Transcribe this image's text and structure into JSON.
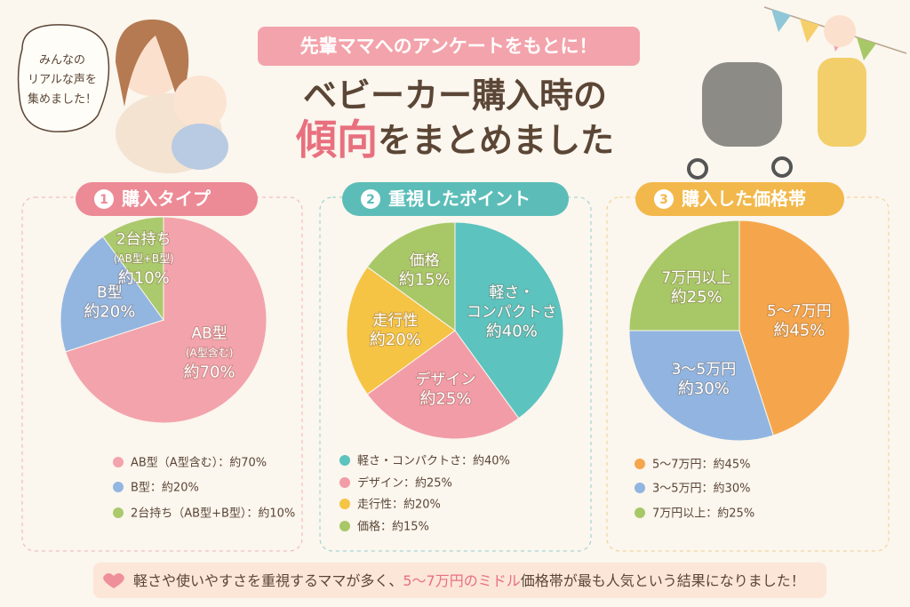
{
  "header": {
    "pill": "先輩ママへのアンケートをもとに！",
    "title_line1": "ベビーカー購入時の",
    "title_highlight": "傾向",
    "title_rest": "をまとめました"
  },
  "bubble": [
    "みんなの",
    "リアルな声を",
    "集めました！"
  ],
  "chart_data": [
    {
      "type": "pie",
      "number": "1",
      "title": "購入タイプ",
      "title_color": "#ec8a95",
      "categories": [
        "AB型（A型含む）",
        "B型",
        "2台持ち（AB型+B型）"
      ],
      "values": [
        70,
        20,
        10
      ],
      "value_labels": [
        "約70%",
        "約20%",
        "約10%"
      ],
      "slice_labels": [
        [
          "AB型",
          "(A型含む)"
        ],
        [
          "B型"
        ],
        [
          "2台持ち",
          "(AB型+B型)"
        ]
      ],
      "legend_labels": [
        "AB型（A型含む）：約70%",
        "B型：約20%",
        "2台持ち（AB型+B型）：約10%"
      ],
      "colors": [
        "#f3a3ab",
        "#93b6e0",
        "#abc96d"
      ]
    },
    {
      "type": "pie",
      "number": "2",
      "title": "重視したポイント",
      "title_color": "#5cbdb8",
      "categories": [
        "軽さ・コンパクトさ",
        "デザイン",
        "走行性",
        "価格"
      ],
      "values": [
        40,
        25,
        20,
        15
      ],
      "value_labels": [
        "約40%",
        "約25%",
        "約20%",
        "約15%"
      ],
      "slice_labels": [
        [
          "軽さ・",
          "コンパクトさ"
        ],
        [
          "デザイン"
        ],
        [
          "走行性"
        ],
        [
          "価格"
        ]
      ],
      "legend_labels": [
        "軽さ・コンパクトさ：約40%",
        "デザイン：約25%",
        "走行性：約20%",
        "価格：約15%"
      ],
      "colors": [
        "#5cc3bf",
        "#f29ca7",
        "#f5c445",
        "#a8c867"
      ]
    },
    {
      "type": "pie",
      "number": "3",
      "title": "購入した価格帯",
      "title_color": "#f2b84b",
      "categories": [
        "5〜7万円",
        "3〜5万円",
        "7万円以上"
      ],
      "values": [
        45,
        30,
        25
      ],
      "value_labels": [
        "約45%",
        "約30%",
        "約25%"
      ],
      "slice_labels": [
        [
          "5〜7万円"
        ],
        [
          "3〜5万円"
        ],
        [
          "7万円以上"
        ]
      ],
      "legend_labels": [
        "5〜7万円：約45%",
        "3〜5万円：約30%",
        "7万円以上：約25%"
      ],
      "colors": [
        "#f5a64c",
        "#91b5e0",
        "#a8c867"
      ]
    }
  ],
  "footer": {
    "before": "軽さや使いやすさを重視するママが多く、",
    "highlight": "5〜7万円のミドル",
    "after": "価格帯が最も人気という結果になりました！"
  }
}
